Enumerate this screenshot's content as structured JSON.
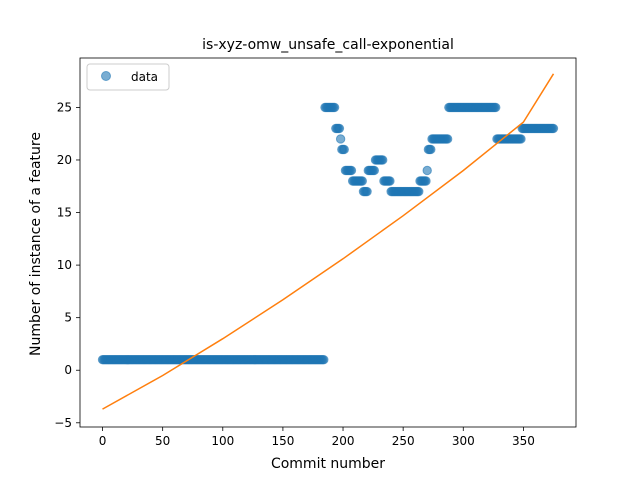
{
  "chart_data": {
    "type": "scatter",
    "title": "is-xyz-omw_unsafe_call-exponential",
    "xlabel": "Commit number",
    "ylabel": "Number of instance of a feature",
    "xlim": [
      -18.75,
      393.75
    ],
    "ylim": [
      -5.4,
      29.7
    ],
    "xticks": [
      0,
      50,
      100,
      150,
      200,
      250,
      300,
      350
    ],
    "yticks": [
      -5,
      0,
      5,
      10,
      15,
      20,
      25
    ],
    "legend": {
      "position": "top-left",
      "entries": [
        "data"
      ]
    },
    "colors": {
      "points": "#1f77b4",
      "fit": "#ff7f0e"
    },
    "segments": [
      {
        "from": 0,
        "to": 184,
        "y": 1
      },
      {
        "from": 185,
        "to": 193,
        "y": 25
      },
      {
        "from": 194,
        "to": 197,
        "y": 23
      },
      {
        "from": 198,
        "to": 198,
        "y": 22
      },
      {
        "from": 199,
        "to": 201,
        "y": 21
      },
      {
        "from": 202,
        "to": 207,
        "y": 19
      },
      {
        "from": 208,
        "to": 216,
        "y": 18
      },
      {
        "from": 217,
        "to": 220,
        "y": 17
      },
      {
        "from": 221,
        "to": 226,
        "y": 19
      },
      {
        "from": 227,
        "to": 233,
        "y": 20
      },
      {
        "from": 234,
        "to": 239,
        "y": 18
      },
      {
        "from": 240,
        "to": 263,
        "y": 17
      },
      {
        "from": 264,
        "to": 269,
        "y": 18
      },
      {
        "from": 270,
        "to": 270,
        "y": 19
      },
      {
        "from": 271,
        "to": 273,
        "y": 21
      },
      {
        "from": 274,
        "to": 287,
        "y": 22
      },
      {
        "from": 288,
        "to": 327,
        "y": 25
      },
      {
        "from": 328,
        "to": 348,
        "y": 22
      },
      {
        "from": 349,
        "to": 375,
        "y": 23
      }
    ],
    "fit": {
      "name": "exponential fit",
      "x": [
        0,
        50,
        100,
        150,
        200,
        250,
        300,
        350,
        375
      ],
      "y": [
        -3.7,
        -0.5,
        3.0,
        6.7,
        10.6,
        14.7,
        19.0,
        23.6,
        28.2
      ]
    }
  }
}
